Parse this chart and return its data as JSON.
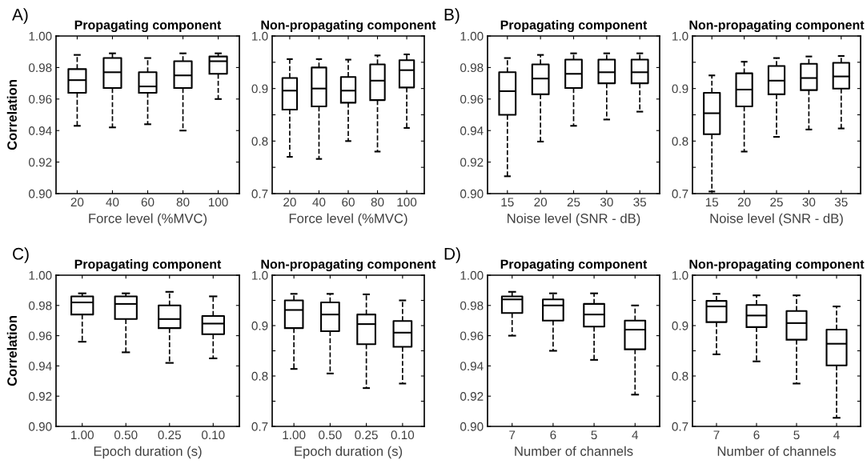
{
  "chart_data": [
    {
      "type": "box",
      "title": "Propagating component",
      "xlabel": "Force level (%MVC)",
      "ylabel": "Correlation",
      "annotations": [
        "A)"
      ],
      "categories": [
        "20",
        "40",
        "60",
        "80",
        "100"
      ],
      "color": "#000000",
      "line_style": "dashed",
      "grid": false,
      "ylim": [
        0.9,
        1.0
      ],
      "yticks": [
        {
          "value": 0.9,
          "label": "0.90"
        },
        {
          "value": 0.92,
          "label": "0.92"
        },
        {
          "value": 0.94,
          "label": "0.94"
        },
        {
          "value": 0.96,
          "label": "0.96"
        },
        {
          "value": 0.98,
          "label": "0.98"
        },
        {
          "value": 1.0,
          "label": "1.00"
        }
      ],
      "boxes": [
        {
          "low": 0.943,
          "q1": 0.964,
          "median": 0.972,
          "q3": 0.979,
          "high": 0.988
        },
        {
          "low": 0.942,
          "q1": 0.967,
          "median": 0.977,
          "q3": 0.986,
          "high": 0.989
        },
        {
          "low": 0.944,
          "q1": 0.964,
          "median": 0.968,
          "q3": 0.977,
          "high": 0.986
        },
        {
          "low": 0.94,
          "q1": 0.967,
          "median": 0.975,
          "q3": 0.984,
          "high": 0.989
        },
        {
          "low": 0.96,
          "q1": 0.976,
          "median": 0.984,
          "q3": 0.987,
          "high": 0.989
        }
      ]
    },
    {
      "type": "box",
      "title": "Non-propagating component",
      "xlabel": "Force level (%MVC)",
      "categories": [
        "20",
        "40",
        "60",
        "80",
        "100"
      ],
      "color": "#000000",
      "line_style": "dashed",
      "grid": false,
      "ylim": [
        0.7,
        1.0
      ],
      "yticks": [
        {
          "value": 0.7,
          "label": "0.7"
        },
        {
          "value": 0.75,
          "label": null
        },
        {
          "value": 0.8,
          "label": "0.8"
        },
        {
          "value": 0.85,
          "label": null
        },
        {
          "value": 0.9,
          "label": "0.9"
        },
        {
          "value": 0.95,
          "label": null
        },
        {
          "value": 1.0,
          "label": "1.0"
        }
      ],
      "boxes": [
        {
          "low": 0.77,
          "q1": 0.86,
          "median": 0.896,
          "q3": 0.92,
          "high": 0.956
        },
        {
          "low": 0.766,
          "q1": 0.866,
          "median": 0.9,
          "q3": 0.94,
          "high": 0.956
        },
        {
          "low": 0.8,
          "q1": 0.873,
          "median": 0.896,
          "q3": 0.922,
          "high": 0.955
        },
        {
          "low": 0.78,
          "q1": 0.878,
          "median": 0.915,
          "q3": 0.946,
          "high": 0.963
        },
        {
          "low": 0.825,
          "q1": 0.902,
          "median": 0.935,
          "q3": 0.954,
          "high": 0.965
        }
      ]
    },
    {
      "type": "box",
      "title": "Propagating component",
      "xlabel": "Noise level (SNR - dB)",
      "annotations": [
        "B)"
      ],
      "categories": [
        "15",
        "20",
        "25",
        "30",
        "35"
      ],
      "color": "#000000",
      "line_style": "dashed",
      "grid": false,
      "ylim": [
        0.9,
        1.0
      ],
      "yticks": [
        {
          "value": 0.9,
          "label": "0.90"
        },
        {
          "value": 0.92,
          "label": "0.92"
        },
        {
          "value": 0.94,
          "label": "0.94"
        },
        {
          "value": 0.96,
          "label": "0.96"
        },
        {
          "value": 0.98,
          "label": "0.98"
        },
        {
          "value": 1.0,
          "label": "1.00"
        }
      ],
      "boxes": [
        {
          "low": 0.911,
          "q1": 0.95,
          "median": 0.965,
          "q3": 0.977,
          "high": 0.986
        },
        {
          "low": 0.933,
          "q1": 0.963,
          "median": 0.973,
          "q3": 0.982,
          "high": 0.988
        },
        {
          "low": 0.943,
          "q1": 0.967,
          "median": 0.976,
          "q3": 0.985,
          "high": 0.989
        },
        {
          "low": 0.947,
          "q1": 0.97,
          "median": 0.977,
          "q3": 0.985,
          "high": 0.989
        },
        {
          "low": 0.952,
          "q1": 0.97,
          "median": 0.977,
          "q3": 0.985,
          "high": 0.989
        }
      ]
    },
    {
      "type": "box",
      "title": "Non-propagating component",
      "xlabel": "Noise level (SNR - dB)",
      "categories": [
        "15",
        "20",
        "25",
        "30",
        "35"
      ],
      "color": "#000000",
      "line_style": "dashed",
      "grid": false,
      "ylim": [
        0.7,
        1.0
      ],
      "yticks": [
        {
          "value": 0.7,
          "label": "0.7"
        },
        {
          "value": 0.75,
          "label": null
        },
        {
          "value": 0.8,
          "label": "0.8"
        },
        {
          "value": 0.85,
          "label": null
        },
        {
          "value": 0.9,
          "label": "0.9"
        },
        {
          "value": 0.95,
          "label": null
        },
        {
          "value": 1.0,
          "label": "1.0"
        }
      ],
      "boxes": [
        {
          "low": 0.704,
          "q1": 0.813,
          "median": 0.853,
          "q3": 0.892,
          "high": 0.925
        },
        {
          "low": 0.78,
          "q1": 0.866,
          "median": 0.898,
          "q3": 0.929,
          "high": 0.951
        },
        {
          "low": 0.808,
          "q1": 0.889,
          "median": 0.915,
          "q3": 0.943,
          "high": 0.958
        },
        {
          "low": 0.822,
          "q1": 0.897,
          "median": 0.92,
          "q3": 0.947,
          "high": 0.961
        },
        {
          "low": 0.824,
          "q1": 0.9,
          "median": 0.923,
          "q3": 0.949,
          "high": 0.962
        }
      ]
    },
    {
      "type": "box",
      "title": "Propagating component",
      "xlabel": "Epoch duration (s)",
      "ylabel": "Correlation",
      "annotations": [
        "C)"
      ],
      "categories": [
        "1.00",
        "0.50",
        "0.25",
        "0.10"
      ],
      "color": "#000000",
      "line_style": "dashed",
      "grid": false,
      "ylim": [
        0.9,
        1.0
      ],
      "yticks": [
        {
          "value": 0.9,
          "label": "0.90"
        },
        {
          "value": 0.92,
          "label": "0.92"
        },
        {
          "value": 0.94,
          "label": "0.94"
        },
        {
          "value": 0.96,
          "label": "0.96"
        },
        {
          "value": 0.98,
          "label": "0.98"
        },
        {
          "value": 1.0,
          "label": "1.00"
        }
      ],
      "boxes": [
        {
          "low": 0.956,
          "q1": 0.974,
          "median": 0.982,
          "q3": 0.986,
          "high": 0.988
        },
        {
          "low": 0.949,
          "q1": 0.971,
          "median": 0.981,
          "q3": 0.986,
          "high": 0.988
        },
        {
          "low": 0.942,
          "q1": 0.965,
          "median": 0.971,
          "q3": 0.98,
          "high": 0.989
        },
        {
          "low": 0.945,
          "q1": 0.961,
          "median": 0.968,
          "q3": 0.973,
          "high": 0.986
        }
      ]
    },
    {
      "type": "box",
      "title": "Non-propagating component",
      "xlabel": "Epoch duration (s)",
      "categories": [
        "1.00",
        "0.50",
        "0.25",
        "0.10"
      ],
      "color": "#000000",
      "line_style": "dashed",
      "grid": false,
      "ylim": [
        0.7,
        1.0
      ],
      "yticks": [
        {
          "value": 0.7,
          "label": "0.7"
        },
        {
          "value": 0.75,
          "label": null
        },
        {
          "value": 0.8,
          "label": "0.8"
        },
        {
          "value": 0.85,
          "label": null
        },
        {
          "value": 0.9,
          "label": "0.9"
        },
        {
          "value": 0.95,
          "label": null
        },
        {
          "value": 1.0,
          "label": "1.0"
        }
      ],
      "boxes": [
        {
          "low": 0.814,
          "q1": 0.895,
          "median": 0.931,
          "q3": 0.95,
          "high": 0.963
        },
        {
          "low": 0.805,
          "q1": 0.889,
          "median": 0.922,
          "q3": 0.946,
          "high": 0.963
        },
        {
          "low": 0.776,
          "q1": 0.863,
          "median": 0.903,
          "q3": 0.922,
          "high": 0.962
        },
        {
          "low": 0.785,
          "q1": 0.858,
          "median": 0.886,
          "q3": 0.909,
          "high": 0.95
        }
      ]
    },
    {
      "type": "box",
      "title": "Propagating component",
      "xlabel": "Number of channels",
      "annotations": [
        "D)"
      ],
      "categories": [
        "7",
        "6",
        "5",
        "4"
      ],
      "color": "#000000",
      "line_style": "dashed",
      "grid": false,
      "ylim": [
        0.9,
        1.0
      ],
      "yticks": [
        {
          "value": 0.9,
          "label": "0.90"
        },
        {
          "value": 0.92,
          "label": "0.92"
        },
        {
          "value": 0.94,
          "label": "0.94"
        },
        {
          "value": 0.96,
          "label": "0.96"
        },
        {
          "value": 0.98,
          "label": "0.98"
        },
        {
          "value": 1.0,
          "label": "1.00"
        }
      ],
      "boxes": [
        {
          "low": 0.96,
          "q1": 0.975,
          "median": 0.984,
          "q3": 0.986,
          "high": 0.989
        },
        {
          "low": 0.95,
          "q1": 0.97,
          "median": 0.98,
          "q3": 0.984,
          "high": 0.988
        },
        {
          "low": 0.944,
          "q1": 0.966,
          "median": 0.974,
          "q3": 0.981,
          "high": 0.988
        },
        {
          "low": 0.921,
          "q1": 0.951,
          "median": 0.964,
          "q3": 0.97,
          "high": 0.98
        }
      ]
    },
    {
      "type": "box",
      "title": "Non-propagating component",
      "xlabel": "Number of channels",
      "categories": [
        "7",
        "6",
        "5",
        "4"
      ],
      "color": "#000000",
      "line_style": "dashed",
      "grid": false,
      "ylim": [
        0.7,
        1.0
      ],
      "yticks": [
        {
          "value": 0.7,
          "label": "0.7"
        },
        {
          "value": 0.75,
          "label": null
        },
        {
          "value": 0.8,
          "label": "0.8"
        },
        {
          "value": 0.85,
          "label": null
        },
        {
          "value": 0.9,
          "label": "0.9"
        },
        {
          "value": 0.95,
          "label": null
        },
        {
          "value": 1.0,
          "label": "1.0"
        }
      ],
      "boxes": [
        {
          "low": 0.843,
          "q1": 0.907,
          "median": 0.938,
          "q3": 0.949,
          "high": 0.963
        },
        {
          "low": 0.829,
          "q1": 0.897,
          "median": 0.92,
          "q3": 0.941,
          "high": 0.96
        },
        {
          "low": 0.785,
          "q1": 0.872,
          "median": 0.905,
          "q3": 0.929,
          "high": 0.96
        },
        {
          "low": 0.717,
          "q1": 0.821,
          "median": 0.864,
          "q3": 0.892,
          "high": 0.938
        }
      ]
    }
  ]
}
